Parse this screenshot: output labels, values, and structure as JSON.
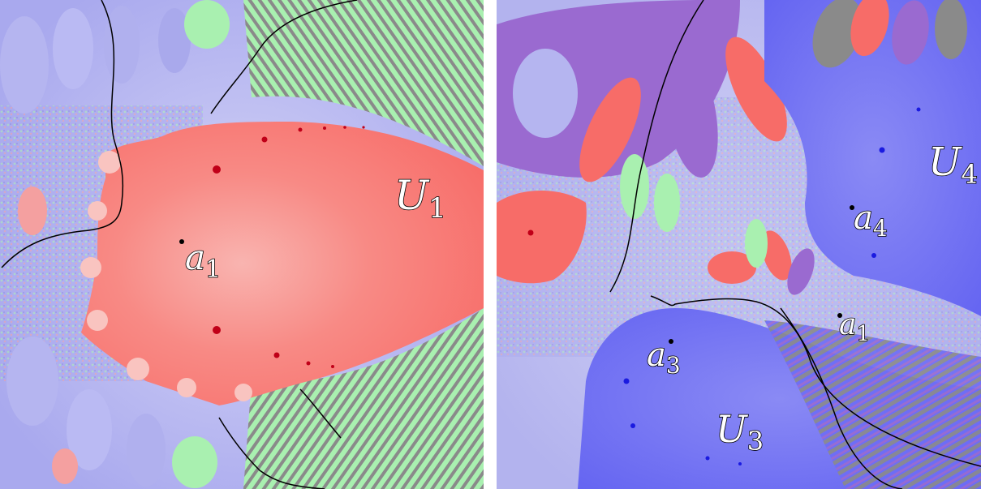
{
  "left_panel": {
    "labels": [
      {
        "id": "U1",
        "base": "U",
        "sub": "1"
      },
      {
        "id": "a1",
        "base": "a",
        "sub": "1"
      }
    ]
  },
  "right_panel": {
    "labels": [
      {
        "id": "U4",
        "base": "U",
        "sub": "4"
      },
      {
        "id": "a4",
        "base": "a",
        "sub": "4"
      },
      {
        "id": "a1",
        "base": "a",
        "sub": "1"
      },
      {
        "id": "a3",
        "base": "a",
        "sub": "3"
      },
      {
        "id": "U3",
        "base": "U",
        "sub": "3"
      }
    ]
  },
  "colors": {
    "red_basin": "#f76c68",
    "light_red": "#f9b4b0",
    "blue_basin": "#6d6df5",
    "light_blue": "#b9b9f2",
    "lavender": "#a9a9f0",
    "green": "#a9f0b0",
    "purple": "#9a6ad0",
    "gray": "#8a8a8a",
    "attractor_dark_red": "#c00018",
    "attractor_dark_blue": "#1a1ae0"
  }
}
